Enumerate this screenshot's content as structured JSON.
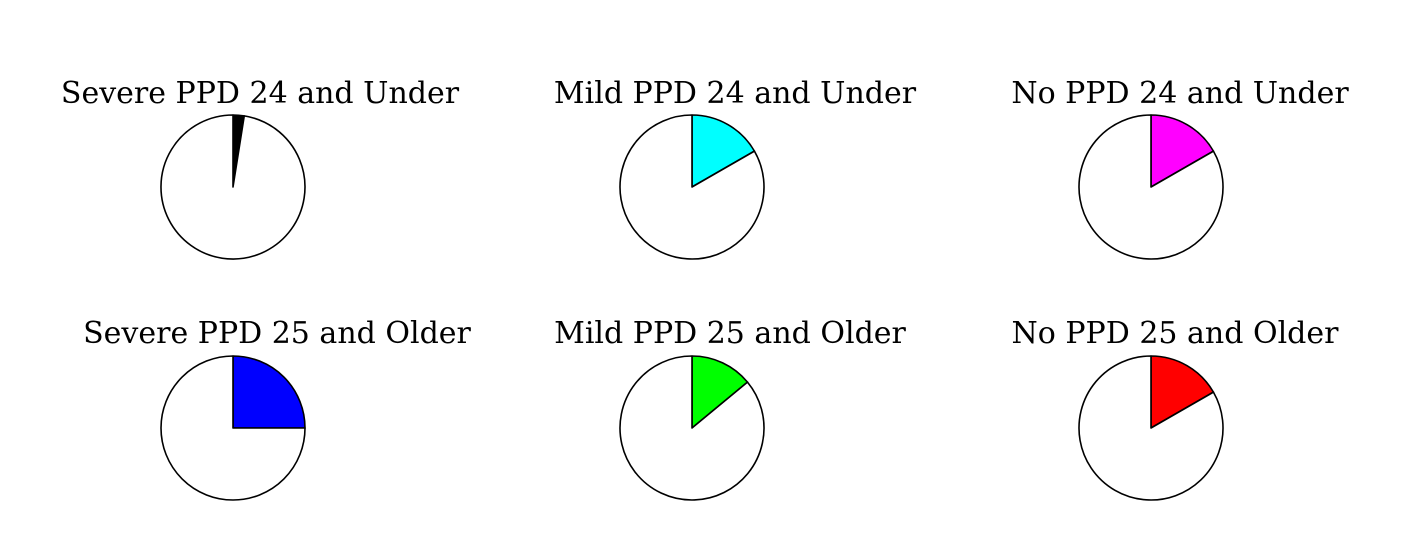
{
  "chart_data": [
    {
      "type": "pie",
      "title": "Severe PPD 24 and Under",
      "values": [
        2.5,
        97.5
      ],
      "colors": [
        "#000000",
        "#ffffff"
      ]
    },
    {
      "type": "pie",
      "title": "Mild PPD 24 and Under",
      "values": [
        16.7,
        83.3
      ],
      "colors": [
        "#00ffff",
        "#ffffff"
      ]
    },
    {
      "type": "pie",
      "title": "No PPD 24 and Under",
      "values": [
        16.7,
        83.3
      ],
      "colors": [
        "#ff00ff",
        "#ffffff"
      ]
    },
    {
      "type": "pie",
      "title": "Severe PPD 25 and Older",
      "values": [
        25,
        75
      ],
      "colors": [
        "#0000ff",
        "#ffffff"
      ]
    },
    {
      "type": "pie",
      "title": "Mild PPD 25 and Older",
      "values": [
        14,
        86
      ],
      "colors": [
        "#00ff00",
        "#ffffff"
      ]
    },
    {
      "type": "pie",
      "title": "No PPD 25 and Older",
      "values": [
        16.7,
        83.3
      ],
      "colors": [
        "#ff0000",
        "#ffffff"
      ]
    }
  ]
}
